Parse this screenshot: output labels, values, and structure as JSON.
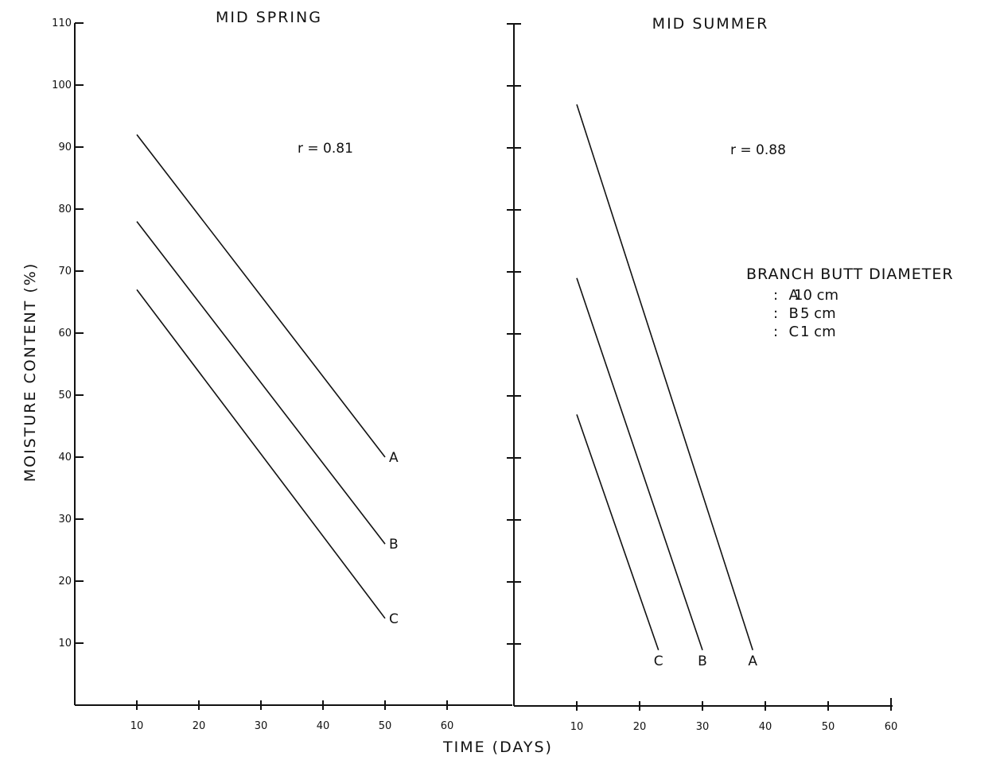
{
  "chart_data": [
    {
      "type": "line",
      "title": "MID SPRING",
      "xlabel": "TIME (DAYS)",
      "ylabel": "MOISTURE CONTENT (%)",
      "xlim": [
        0,
        60
      ],
      "ylim": [
        0,
        110
      ],
      "x_ticks": [
        10,
        20,
        30,
        40,
        50,
        60
      ],
      "y_ticks": [
        10,
        20,
        30,
        40,
        50,
        60,
        70,
        80,
        90,
        100,
        110
      ],
      "annotation": "r = 0.81",
      "series": [
        {
          "name": "A",
          "points": [
            [
              10,
              92
            ],
            [
              50,
              40
            ]
          ]
        },
        {
          "name": "B",
          "points": [
            [
              10,
              78
            ],
            [
              50,
              26
            ]
          ]
        },
        {
          "name": "C",
          "points": [
            [
              10,
              67
            ],
            [
              50,
              14
            ]
          ]
        }
      ]
    },
    {
      "type": "line",
      "title": "MID SUMMER",
      "xlabel": "TIME (DAYS)",
      "ylabel": "",
      "xlim": [
        0,
        60
      ],
      "ylim": [
        0,
        110
      ],
      "x_ticks": [
        10,
        20,
        30,
        40,
        50,
        60
      ],
      "y_ticks": [
        10,
        20,
        30,
        40,
        50,
        60,
        70,
        80,
        90,
        100,
        110
      ],
      "annotation": "r = 0.88",
      "series": [
        {
          "name": "A",
          "points": [
            [
              10,
              97
            ],
            [
              38,
              9
            ]
          ]
        },
        {
          "name": "B",
          "points": [
            [
              10,
              69
            ],
            [
              30,
              9
            ]
          ]
        },
        {
          "name": "C",
          "points": [
            [
              10,
              47
            ],
            [
              23,
              9
            ]
          ]
        }
      ]
    }
  ],
  "legend": {
    "title": "BRANCH BUTT DIAMETER",
    "items": [
      {
        "key": "A",
        "value": "10 cm"
      },
      {
        "key": "B",
        "value": "5 cm"
      },
      {
        "key": "C",
        "value": "1 cm"
      }
    ]
  }
}
